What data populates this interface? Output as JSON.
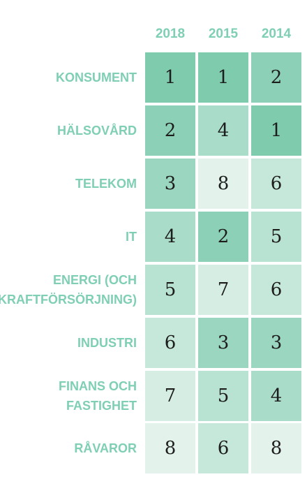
{
  "chart_data": {
    "type": "heatmap",
    "title": "",
    "columns": [
      "2018",
      "2015",
      "2014"
    ],
    "rows": [
      {
        "label": "KONSUMENT",
        "values": [
          1,
          1,
          2
        ]
      },
      {
        "label": "HÄLSOVÅRD",
        "values": [
          2,
          4,
          1
        ]
      },
      {
        "label": "TELEKOM",
        "values": [
          3,
          8,
          6
        ]
      },
      {
        "label": "IT",
        "values": [
          4,
          2,
          5
        ]
      },
      {
        "label": "ENERGI (OCH\nKRAFTFÖRSÖRJNING)",
        "values": [
          5,
          7,
          6
        ]
      },
      {
        "label": "INDUSTRI",
        "values": [
          6,
          3,
          3
        ]
      },
      {
        "label": "FINANS OCH\nFASTIGHET",
        "values": [
          7,
          5,
          4
        ]
      },
      {
        "label": "RÅVAROR",
        "values": [
          8,
          6,
          8
        ]
      }
    ],
    "color_scale": {
      "low_rank_color": "#7ecbae",
      "high_rank_color": "#e3f3ec"
    }
  }
}
